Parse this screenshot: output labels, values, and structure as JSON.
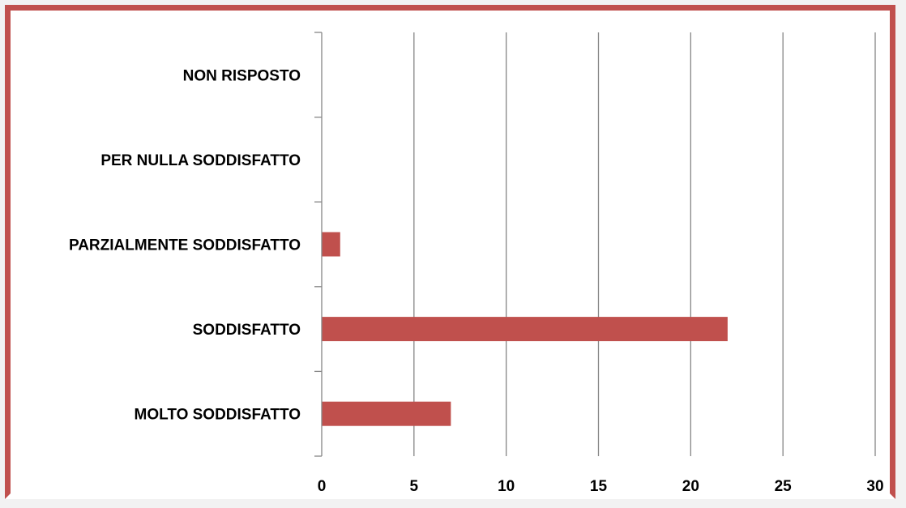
{
  "chart_data": {
    "type": "bar",
    "orientation": "horizontal",
    "title": "",
    "xlabel": "",
    "ylabel": "",
    "categories": [
      "MOLTO SODDISFATTO",
      "SODDISFATTO",
      "PARZIALMENTE SODDISFATTO",
      "PER NULLA SODDISFATTO",
      "NON RISPOSTO"
    ],
    "values": [
      7,
      22,
      1,
      0,
      0
    ],
    "xlim": [
      0,
      30
    ],
    "xticks": [
      "0",
      "5",
      "10",
      "15",
      "20",
      "25",
      "30"
    ],
    "grid": true,
    "legend": "none",
    "bar_color": "#c0504d",
    "frame_color": "#c0504d"
  }
}
